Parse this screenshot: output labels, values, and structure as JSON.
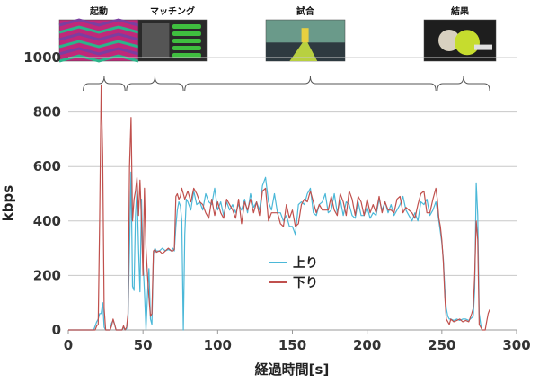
{
  "chart_data": {
    "type": "line",
    "title": "",
    "xlabel": "経過時間[s]",
    "ylabel": "kbps",
    "xlim": [
      0,
      300
    ],
    "ylim": [
      0,
      1000
    ],
    "x_ticks": [
      "0",
      "50",
      "100",
      "150",
      "200",
      "250",
      "300"
    ],
    "y_ticks": [
      "0",
      "200",
      "400",
      "600",
      "800",
      "1000"
    ],
    "grid": "horizontal",
    "legend_position": "center",
    "colors": {
      "up": "#4bb8d8",
      "down": "#c0504d",
      "grid": "#c8c8c8",
      "axis": "#999999"
    },
    "phases": [
      {
        "label": "起動",
        "x_start": 10,
        "x_end": 38
      },
      {
        "label": "マッチング",
        "x_start": 39,
        "x_end": 77
      },
      {
        "label": "試合",
        "x_start": 78,
        "x_end": 246
      },
      {
        "label": "結果",
        "x_start": 247,
        "x_end": 282
      }
    ],
    "series": [
      {
        "name": "上り",
        "color": "#4bb8d8",
        "points": [
          [
            0,
            0
          ],
          [
            17,
            0
          ],
          [
            19,
            30
          ],
          [
            20,
            40
          ],
          [
            21,
            60
          ],
          [
            22,
            60
          ],
          [
            23,
            100
          ],
          [
            24,
            10
          ],
          [
            25,
            0
          ],
          [
            28,
            0
          ],
          [
            29,
            25
          ],
          [
            30,
            35
          ],
          [
            31,
            20
          ],
          [
            32,
            0
          ],
          [
            36,
            0
          ],
          [
            37,
            10
          ],
          [
            38,
            0
          ],
          [
            39,
            5
          ],
          [
            40,
            40
          ],
          [
            41,
            300
          ],
          [
            42,
            580
          ],
          [
            43,
            160
          ],
          [
            44,
            145
          ],
          [
            45,
            420
          ],
          [
            46,
            520
          ],
          [
            47,
            300
          ],
          [
            48,
            140
          ],
          [
            49,
            480
          ],
          [
            50,
            250
          ],
          [
            51,
            140
          ],
          [
            52,
            0
          ],
          [
            53,
            130
          ],
          [
            54,
            225
          ],
          [
            55,
            40
          ],
          [
            56,
            20
          ],
          [
            57,
            280
          ],
          [
            58,
            300
          ],
          [
            59,
            290
          ],
          [
            61,
            290
          ],
          [
            63,
            300
          ],
          [
            65,
            290
          ],
          [
            67,
            295
          ],
          [
            69,
            290
          ],
          [
            70,
            300
          ],
          [
            71,
            290
          ],
          [
            72,
            380
          ],
          [
            73,
            440
          ],
          [
            74,
            470
          ],
          [
            75,
            455
          ],
          [
            76,
            400
          ],
          [
            77,
            0
          ],
          [
            78,
            350
          ],
          [
            79,
            480
          ],
          [
            80,
            470
          ],
          [
            82,
            440
          ],
          [
            84,
            510
          ],
          [
            86,
            460
          ],
          [
            88,
            470
          ],
          [
            90,
            440
          ],
          [
            92,
            500
          ],
          [
            94,
            470
          ],
          [
            96,
            460
          ],
          [
            98,
            520
          ],
          [
            100,
            440
          ],
          [
            102,
            470
          ],
          [
            104,
            420
          ],
          [
            106,
            470
          ],
          [
            108,
            440
          ],
          [
            110,
            460
          ],
          [
            112,
            430
          ],
          [
            114,
            460
          ],
          [
            116,
            440
          ],
          [
            118,
            480
          ],
          [
            120,
            430
          ],
          [
            122,
            500
          ],
          [
            124,
            450
          ],
          [
            126,
            470
          ],
          [
            128,
            440
          ],
          [
            130,
            530
          ],
          [
            132,
            560
          ],
          [
            134,
            470
          ],
          [
            136,
            440
          ],
          [
            138,
            500
          ],
          [
            140,
            430
          ],
          [
            142,
            430
          ],
          [
            144,
            400
          ],
          [
            146,
            420
          ],
          [
            148,
            380
          ],
          [
            150,
            380
          ],
          [
            152,
            350
          ],
          [
            154,
            460
          ],
          [
            156,
            470
          ],
          [
            158,
            460
          ],
          [
            160,
            500
          ],
          [
            162,
            520
          ],
          [
            164,
            430
          ],
          [
            166,
            420
          ],
          [
            168,
            460
          ],
          [
            170,
            470
          ],
          [
            172,
            500
          ],
          [
            174,
            430
          ],
          [
            176,
            440
          ],
          [
            178,
            500
          ],
          [
            180,
            430
          ],
          [
            182,
            480
          ],
          [
            184,
            420
          ],
          [
            186,
            470
          ],
          [
            188,
            460
          ],
          [
            190,
            420
          ],
          [
            192,
            410
          ],
          [
            194,
            470
          ],
          [
            196,
            420
          ],
          [
            198,
            420
          ],
          [
            200,
            450
          ],
          [
            202,
            410
          ],
          [
            204,
            430
          ],
          [
            206,
            420
          ],
          [
            208,
            480
          ],
          [
            210,
            440
          ],
          [
            212,
            470
          ],
          [
            214,
            430
          ],
          [
            216,
            460
          ],
          [
            218,
            420
          ],
          [
            220,
            440
          ],
          [
            222,
            460
          ],
          [
            224,
            490
          ],
          [
            226,
            440
          ],
          [
            228,
            420
          ],
          [
            230,
            400
          ],
          [
            232,
            430
          ],
          [
            234,
            400
          ],
          [
            236,
            470
          ],
          [
            238,
            460
          ],
          [
            240,
            480
          ],
          [
            242,
            420
          ],
          [
            244,
            440
          ],
          [
            246,
            470
          ],
          [
            247,
            440
          ],
          [
            248,
            400
          ],
          [
            249,
            360
          ],
          [
            250,
            320
          ],
          [
            251,
            260
          ],
          [
            252,
            150
          ],
          [
            253,
            80
          ],
          [
            254,
            50
          ],
          [
            255,
            40
          ],
          [
            256,
            40
          ],
          [
            258,
            35
          ],
          [
            260,
            40
          ],
          [
            262,
            35
          ],
          [
            264,
            40
          ],
          [
            266,
            40
          ],
          [
            268,
            35
          ],
          [
            270,
            45
          ],
          [
            271,
            50
          ],
          [
            272,
            150
          ],
          [
            273,
            540
          ],
          [
            274,
            420
          ],
          [
            275,
            60
          ],
          [
            276,
            20
          ],
          [
            277,
            0
          ]
        ]
      },
      {
        "name": "下り",
        "color": "#c0504d",
        "points": [
          [
            0,
            0
          ],
          [
            18,
            0
          ],
          [
            19,
            15
          ],
          [
            20,
            20
          ],
          [
            21,
            400
          ],
          [
            22,
            900
          ],
          [
            23,
            640
          ],
          [
            24,
            80
          ],
          [
            25,
            0
          ],
          [
            28,
            0
          ],
          [
            29,
            15
          ],
          [
            30,
            40
          ],
          [
            31,
            20
          ],
          [
            32,
            0
          ],
          [
            36,
            0
          ],
          [
            37,
            15
          ],
          [
            38,
            0
          ],
          [
            39,
            10
          ],
          [
            40,
            60
          ],
          [
            41,
            600
          ],
          [
            42,
            780
          ],
          [
            43,
            400
          ],
          [
            44,
            480
          ],
          [
            45,
            510
          ],
          [
            46,
            560
          ],
          [
            47,
            420
          ],
          [
            48,
            550
          ],
          [
            49,
            400
          ],
          [
            50,
            200
          ],
          [
            51,
            520
          ],
          [
            52,
            300
          ],
          [
            53,
            200
          ],
          [
            54,
            120
          ],
          [
            55,
            50
          ],
          [
            56,
            60
          ],
          [
            57,
            290
          ],
          [
            58,
            295
          ],
          [
            59,
            285
          ],
          [
            61,
            290
          ],
          [
            63,
            280
          ],
          [
            65,
            290
          ],
          [
            67,
            300
          ],
          [
            69,
            290
          ],
          [
            70,
            290
          ],
          [
            71,
            295
          ],
          [
            72,
            490
          ],
          [
            73,
            500
          ],
          [
            74,
            480
          ],
          [
            75,
            490
          ],
          [
            76,
            520
          ],
          [
            78,
            480
          ],
          [
            80,
            510
          ],
          [
            82,
            470
          ],
          [
            84,
            520
          ],
          [
            86,
            500
          ],
          [
            88,
            470
          ],
          [
            90,
            460
          ],
          [
            92,
            430
          ],
          [
            94,
            410
          ],
          [
            96,
            480
          ],
          [
            98,
            420
          ],
          [
            100,
            470
          ],
          [
            102,
            430
          ],
          [
            104,
            410
          ],
          [
            106,
            480
          ],
          [
            108,
            460
          ],
          [
            110,
            440
          ],
          [
            112,
            410
          ],
          [
            114,
            480
          ],
          [
            116,
            390
          ],
          [
            118,
            470
          ],
          [
            120,
            440
          ],
          [
            122,
            480
          ],
          [
            124,
            430
          ],
          [
            126,
            470
          ],
          [
            128,
            420
          ],
          [
            130,
            510
          ],
          [
            132,
            520
          ],
          [
            134,
            400
          ],
          [
            136,
            430
          ],
          [
            138,
            430
          ],
          [
            140,
            430
          ],
          [
            142,
            390
          ],
          [
            144,
            380
          ],
          [
            146,
            460
          ],
          [
            148,
            410
          ],
          [
            150,
            440
          ],
          [
            152,
            380
          ],
          [
            154,
            390
          ],
          [
            156,
            460
          ],
          [
            158,
            480
          ],
          [
            160,
            470
          ],
          [
            162,
            510
          ],
          [
            164,
            470
          ],
          [
            166,
            430
          ],
          [
            168,
            460
          ],
          [
            170,
            440
          ],
          [
            172,
            440
          ],
          [
            174,
            440
          ],
          [
            176,
            490
          ],
          [
            178,
            440
          ],
          [
            180,
            420
          ],
          [
            182,
            500
          ],
          [
            184,
            470
          ],
          [
            186,
            420
          ],
          [
            188,
            510
          ],
          [
            190,
            480
          ],
          [
            192,
            420
          ],
          [
            194,
            490
          ],
          [
            196,
            470
          ],
          [
            198,
            420
          ],
          [
            200,
            480
          ],
          [
            202,
            430
          ],
          [
            204,
            460
          ],
          [
            206,
            430
          ],
          [
            208,
            490
          ],
          [
            210,
            430
          ],
          [
            212,
            470
          ],
          [
            214,
            440
          ],
          [
            216,
            440
          ],
          [
            218,
            430
          ],
          [
            220,
            480
          ],
          [
            222,
            490
          ],
          [
            224,
            430
          ],
          [
            226,
            450
          ],
          [
            228,
            440
          ],
          [
            230,
            430
          ],
          [
            232,
            410
          ],
          [
            234,
            460
          ],
          [
            236,
            500
          ],
          [
            238,
            510
          ],
          [
            240,
            430
          ],
          [
            242,
            430
          ],
          [
            244,
            480
          ],
          [
            246,
            520
          ],
          [
            247,
            480
          ],
          [
            248,
            410
          ],
          [
            249,
            380
          ],
          [
            250,
            330
          ],
          [
            251,
            250
          ],
          [
            252,
            120
          ],
          [
            253,
            40
          ],
          [
            254,
            30
          ],
          [
            255,
            20
          ],
          [
            256,
            40
          ],
          [
            258,
            30
          ],
          [
            260,
            35
          ],
          [
            262,
            40
          ],
          [
            264,
            30
          ],
          [
            266,
            35
          ],
          [
            268,
            30
          ],
          [
            270,
            60
          ],
          [
            271,
            80
          ],
          [
            272,
            200
          ],
          [
            273,
            400
          ],
          [
            274,
            330
          ],
          [
            275,
            20
          ],
          [
            276,
            10
          ],
          [
            277,
            0
          ],
          [
            279,
            0
          ],
          [
            280,
            30
          ],
          [
            281,
            60
          ],
          [
            282,
            75
          ]
        ]
      }
    ]
  }
}
